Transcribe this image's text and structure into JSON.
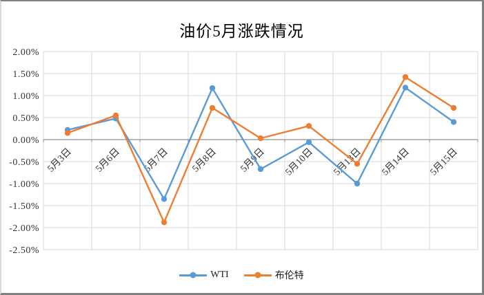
{
  "chart_data": {
    "type": "line",
    "title": "油价5月涨跌情况",
    "categories": [
      "5月3日",
      "5月6日",
      "5月7日",
      "5月8日",
      "5月9日",
      "5月10日",
      "5月13日",
      "5月14日",
      "5月15日"
    ],
    "series": [
      {
        "name": "WTI",
        "color": "#5B9BD5",
        "values": [
          0.22,
          0.48,
          -1.35,
          1.17,
          -0.67,
          -0.06,
          -1.0,
          1.18,
          0.4
        ]
      },
      {
        "name": "布伦特",
        "color": "#ED7D31",
        "values": [
          0.15,
          0.55,
          -1.88,
          0.72,
          0.03,
          0.31,
          -0.55,
          1.42,
          0.72
        ]
      }
    ],
    "y_axis": {
      "min": -2.5,
      "max": 2.0,
      "step": 0.5,
      "tick_labels": [
        "2.00%",
        "1.50%",
        "1.00%",
        "0.50%",
        "0.00%",
        "-0.50%",
        "-1.00%",
        "-1.50%",
        "-2.00%",
        "-2.50%"
      ]
    },
    "xlabel": "",
    "ylabel": "",
    "grid": true,
    "legend_position": "bottom",
    "gridline_color": "#D9D9D9",
    "axis_color": "#8C8C8C",
    "marker_style": "circle"
  }
}
